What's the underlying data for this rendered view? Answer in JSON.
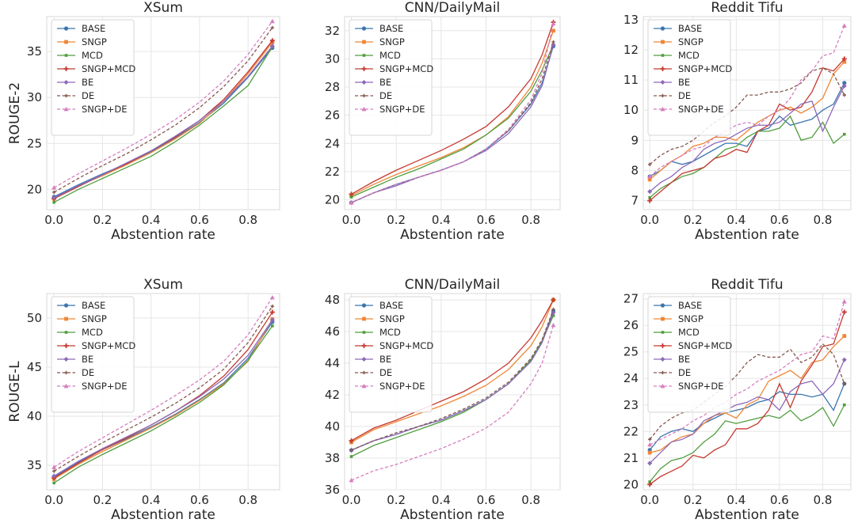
{
  "figure": {
    "colors": {
      "BASE": "#3b75af",
      "SNGP": "#ef8636",
      "MCD": "#519e3e",
      "SNGP+MCD": "#c53a32",
      "BE": "#8d69b8",
      "DE": "#84584e",
      "SNGP+DE": "#d57dbf"
    },
    "markers": {
      "BASE": "circle",
      "SNGP": "square",
      "MCD": "small-square",
      "SNGP+MCD": "plus",
      "BE": "diamond",
      "DE": "small-plus",
      "SNGP+DE": "triangle"
    },
    "dashed_series": [
      "DE",
      "SNGP+DE"
    ],
    "legend_order": [
      "BASE",
      "SNGP",
      "MCD",
      "SNGP+MCD",
      "BE",
      "DE",
      "SNGP+DE"
    ]
  },
  "chart_data": [
    {
      "type": "line",
      "title": "XSum",
      "xlabel": "Abstention rate",
      "ylabel": "ROUGE-2",
      "xlim": [
        -0.03,
        0.93
      ],
      "ylim": [
        17.8,
        38.8
      ],
      "xticks": [
        0.0,
        0.2,
        0.4,
        0.6,
        0.8
      ],
      "yticks": [
        20,
        25,
        30,
        35
      ],
      "legend": "top-left",
      "grid": true,
      "x": [
        0.0,
        0.1,
        0.2,
        0.3,
        0.4,
        0.5,
        0.6,
        0.7,
        0.8,
        0.9
      ],
      "series": [
        {
          "name": "BASE",
          "values": [
            19.2,
            20.5,
            21.7,
            22.8,
            24.1,
            25.6,
            27.3,
            29.4,
            32.2,
            35.4
          ]
        },
        {
          "name": "SNGP",
          "values": [
            19.0,
            20.4,
            21.5,
            22.7,
            24.0,
            25.5,
            27.2,
            29.6,
            32.6,
            36.0
          ]
        },
        {
          "name": "MCD",
          "values": [
            18.6,
            20.0,
            21.2,
            22.4,
            23.6,
            25.2,
            27.0,
            29.1,
            31.3,
            35.5
          ]
        },
        {
          "name": "SNGP+MCD",
          "values": [
            19.0,
            20.3,
            21.6,
            22.8,
            24.2,
            25.7,
            27.5,
            29.8,
            32.8,
            36.2
          ]
        },
        {
          "name": "BE",
          "values": [
            19.1,
            20.4,
            21.6,
            22.9,
            24.2,
            25.8,
            27.5,
            29.6,
            32.3,
            35.6
          ]
        },
        {
          "name": "DE",
          "values": [
            19.7,
            21.2,
            22.6,
            23.9,
            25.4,
            27.0,
            28.9,
            31.2,
            34.0,
            37.6
          ]
        },
        {
          "name": "SNGP+DE",
          "values": [
            20.2,
            21.7,
            23.1,
            24.5,
            26.0,
            27.6,
            29.5,
            31.8,
            34.7,
            38.3
          ]
        }
      ]
    },
    {
      "type": "line",
      "title": "CNN/DailyMail",
      "xlabel": "Abstention rate",
      "ylabel": "",
      "xlim": [
        -0.03,
        0.93
      ],
      "ylim": [
        19.3,
        33.0
      ],
      "xticks": [
        0.0,
        0.2,
        0.4,
        0.6,
        0.8
      ],
      "yticks": [
        20,
        22,
        24,
        26,
        28,
        30,
        32
      ],
      "legend": "top-left",
      "grid": true,
      "x": [
        0.0,
        0.1,
        0.2,
        0.3,
        0.4,
        0.5,
        0.6,
        0.7,
        0.8,
        0.85,
        0.9
      ],
      "series": [
        {
          "name": "BASE",
          "values": [
            19.8,
            20.5,
            21.1,
            21.6,
            22.1,
            22.7,
            23.6,
            24.9,
            26.8,
            28.3,
            30.9
          ]
        },
        {
          "name": "SNGP",
          "values": [
            20.3,
            21.1,
            21.8,
            22.4,
            23.0,
            23.7,
            24.6,
            25.9,
            28.0,
            29.7,
            32.0
          ]
        },
        {
          "name": "MCD",
          "values": [
            20.2,
            20.9,
            21.6,
            22.2,
            22.9,
            23.6,
            24.6,
            25.8,
            27.7,
            29.2,
            31.0
          ]
        },
        {
          "name": "SNGP+MCD",
          "values": [
            20.4,
            21.3,
            22.1,
            22.8,
            23.5,
            24.3,
            25.2,
            26.6,
            28.6,
            30.3,
            32.6
          ]
        },
        {
          "name": "BE",
          "values": [
            19.8,
            20.5,
            21.0,
            21.6,
            22.1,
            22.7,
            23.5,
            24.7,
            26.6,
            28.1,
            31.0
          ]
        },
        {
          "name": "DE",
          "values": [
            19.8,
            20.5,
            21.1,
            21.6,
            22.1,
            22.7,
            23.6,
            24.9,
            26.9,
            28.6,
            31.2
          ]
        },
        {
          "name": "SNGP+DE",
          "values": [
            19.8,
            20.5,
            21.1,
            21.6,
            22.1,
            22.7,
            23.6,
            25.0,
            27.1,
            29.0,
            32.5
          ]
        }
      ]
    },
    {
      "type": "line",
      "title": "Reddit Tifu",
      "xlabel": "Abstention rate",
      "ylabel": "",
      "xlim": [
        -0.03,
        0.93
      ],
      "ylim": [
        6.7,
        13.1
      ],
      "xticks": [
        0.0,
        0.2,
        0.4,
        0.6,
        0.8
      ],
      "yticks": [
        7,
        8,
        9,
        10,
        11,
        12,
        13
      ],
      "legend": "top-left",
      "grid": true,
      "x": [
        0.0,
        0.05,
        0.1,
        0.15,
        0.2,
        0.25,
        0.3,
        0.35,
        0.4,
        0.45,
        0.5,
        0.55,
        0.6,
        0.65,
        0.7,
        0.75,
        0.8,
        0.85,
        0.9
      ],
      "series": [
        {
          "name": "BASE",
          "values": [
            7.8,
            8.0,
            8.3,
            8.2,
            8.3,
            8.5,
            8.7,
            8.9,
            8.9,
            8.8,
            9.3,
            9.4,
            9.8,
            9.5,
            9.6,
            9.7,
            10.0,
            10.2,
            10.9
          ]
        },
        {
          "name": "SNGP",
          "values": [
            7.7,
            8.0,
            8.3,
            8.5,
            8.8,
            8.9,
            9.1,
            9.1,
            9.0,
            9.3,
            9.6,
            9.8,
            10.0,
            10.1,
            9.9,
            10.1,
            10.4,
            11.2,
            11.6
          ]
        },
        {
          "name": "MCD",
          "values": [
            7.1,
            7.4,
            7.6,
            7.8,
            7.9,
            8.1,
            8.4,
            8.7,
            8.8,
            9.1,
            9.3,
            9.3,
            9.4,
            9.8,
            9.0,
            9.1,
            9.6,
            8.9,
            9.2
          ]
        },
        {
          "name": "SNGP+MCD",
          "values": [
            7.0,
            7.3,
            7.6,
            7.9,
            8.0,
            8.1,
            8.4,
            8.5,
            8.7,
            8.6,
            9.3,
            9.5,
            10.2,
            10.0,
            10.1,
            10.6,
            11.4,
            11.3,
            11.7
          ]
        },
        {
          "name": "BE",
          "values": [
            7.3,
            7.6,
            7.8,
            8.1,
            8.3,
            8.7,
            8.9,
            9.0,
            9.2,
            9.4,
            9.5,
            9.5,
            9.6,
            9.9,
            10.2,
            10.3,
            9.3,
            10.1,
            10.8
          ]
        },
        {
          "name": "DE",
          "values": [
            8.2,
            8.5,
            8.7,
            8.8,
            9.0,
            9.3,
            9.6,
            9.8,
            10.1,
            10.5,
            10.5,
            10.6,
            10.6,
            10.7,
            10.9,
            11.3,
            11.4,
            11.2,
            10.5
          ]
        },
        {
          "name": "SNGP+DE",
          "values": [
            7.8,
            8.1,
            8.3,
            8.5,
            8.7,
            8.8,
            9.1,
            9.3,
            9.5,
            9.6,
            9.5,
            9.8,
            10.0,
            10.4,
            11.0,
            11.3,
            11.8,
            11.9,
            12.8
          ]
        }
      ]
    },
    {
      "type": "line",
      "title": "XSum",
      "xlabel": "Abstention rate",
      "ylabel": "ROUGE-L",
      "xlim": [
        -0.03,
        0.93
      ],
      "ylim": [
        32.5,
        52.5
      ],
      "xticks": [
        0.0,
        0.2,
        0.4,
        0.6,
        0.8
      ],
      "yticks": [
        35,
        40,
        45,
        50
      ],
      "legend": "top-left",
      "grid": true,
      "x": [
        0.0,
        0.1,
        0.2,
        0.3,
        0.4,
        0.5,
        0.6,
        0.7,
        0.8,
        0.9
      ],
      "series": [
        {
          "name": "BASE",
          "values": [
            33.8,
            35.3,
            36.6,
            37.7,
            38.9,
            40.2,
            41.7,
            43.4,
            45.9,
            49.6
          ]
        },
        {
          "name": "SNGP",
          "values": [
            33.6,
            35.1,
            36.4,
            37.6,
            38.8,
            40.1,
            41.6,
            43.3,
            45.6,
            49.9
          ]
        },
        {
          "name": "MCD",
          "values": [
            33.2,
            34.8,
            36.1,
            37.3,
            38.5,
            39.9,
            41.4,
            43.2,
            45.7,
            49.2
          ]
        },
        {
          "name": "SNGP+MCD",
          "values": [
            33.7,
            35.2,
            36.6,
            37.8,
            39.1,
            40.5,
            42.1,
            44.1,
            46.8,
            50.6
          ]
        },
        {
          "name": "BE",
          "values": [
            33.9,
            35.4,
            36.7,
            37.9,
            39.1,
            40.5,
            42.0,
            43.8,
            46.2,
            49.8
          ]
        },
        {
          "name": "DE",
          "values": [
            34.4,
            35.9,
            37.3,
            38.6,
            39.9,
            41.3,
            42.9,
            44.8,
            47.5,
            51.2
          ]
        },
        {
          "name": "SNGP+DE",
          "values": [
            34.8,
            36.4,
            37.8,
            39.2,
            40.6,
            42.1,
            43.7,
            45.6,
            48.3,
            52.1
          ]
        }
      ]
    },
    {
      "type": "line",
      "title": "CNN/DailyMail",
      "xlabel": "Abstention rate",
      "ylabel": "",
      "xlim": [
        -0.03,
        0.93
      ],
      "ylim": [
        36.0,
        48.4
      ],
      "xticks": [
        0.0,
        0.2,
        0.4,
        0.6,
        0.8
      ],
      "yticks": [
        36,
        38,
        40,
        42,
        44,
        46,
        48
      ],
      "legend": "top-left",
      "grid": true,
      "x": [
        0.0,
        0.1,
        0.2,
        0.3,
        0.4,
        0.5,
        0.6,
        0.7,
        0.8,
        0.85,
        0.9
      ],
      "series": [
        {
          "name": "BASE",
          "values": [
            38.5,
            39.1,
            39.5,
            40.0,
            40.4,
            41.0,
            41.7,
            42.7,
            44.2,
            45.4,
            47.3
          ]
        },
        {
          "name": "SNGP",
          "values": [
            39.0,
            39.8,
            40.3,
            40.8,
            41.3,
            41.9,
            42.6,
            43.6,
            45.1,
            46.3,
            48.0
          ]
        },
        {
          "name": "MCD",
          "values": [
            38.1,
            38.8,
            39.3,
            39.8,
            40.3,
            40.9,
            41.7,
            42.7,
            44.2,
            45.4,
            47.0
          ]
        },
        {
          "name": "SNGP+MCD",
          "values": [
            39.1,
            39.9,
            40.4,
            41.0,
            41.6,
            42.2,
            43.0,
            44.0,
            45.6,
            46.7,
            48.0
          ]
        },
        {
          "name": "BE",
          "values": [
            38.5,
            39.1,
            39.5,
            40.0,
            40.4,
            41.0,
            41.7,
            42.7,
            44.1,
            45.3,
            47.2
          ]
        },
        {
          "name": "DE",
          "values": [
            38.5,
            39.1,
            39.6,
            40.0,
            40.5,
            41.1,
            41.8,
            42.8,
            44.3,
            45.5,
            47.4
          ]
        },
        {
          "name": "SNGP+DE",
          "values": [
            36.6,
            37.2,
            37.6,
            38.1,
            38.6,
            39.2,
            39.9,
            40.9,
            42.7,
            44.0,
            46.4
          ]
        }
      ]
    },
    {
      "type": "line",
      "title": "Reddit Tifu",
      "xlabel": "Abstention rate",
      "ylabel": "",
      "xlim": [
        -0.03,
        0.93
      ],
      "ylim": [
        19.8,
        27.2
      ],
      "xticks": [
        0.0,
        0.2,
        0.4,
        0.6,
        0.8
      ],
      "yticks": [
        20,
        21,
        22,
        23,
        24,
        25,
        26,
        27
      ],
      "legend": "top-left",
      "grid": true,
      "x": [
        0.0,
        0.05,
        0.1,
        0.15,
        0.2,
        0.25,
        0.3,
        0.35,
        0.4,
        0.45,
        0.5,
        0.55,
        0.6,
        0.65,
        0.7,
        0.75,
        0.8,
        0.85,
        0.9
      ],
      "series": [
        {
          "name": "BASE",
          "values": [
            21.3,
            21.8,
            22.0,
            22.1,
            22.0,
            22.3,
            22.5,
            22.7,
            22.8,
            22.9,
            23.1,
            23.2,
            23.5,
            23.4,
            23.4,
            23.3,
            23.4,
            22.8,
            23.8
          ]
        },
        {
          "name": "SNGP",
          "values": [
            21.2,
            21.3,
            21.6,
            21.8,
            21.9,
            22.3,
            22.6,
            22.7,
            22.5,
            23.0,
            23.2,
            23.9,
            24.1,
            24.3,
            24.0,
            24.6,
            24.7,
            25.2,
            25.6
          ]
        },
        {
          "name": "MCD",
          "values": [
            20.1,
            20.6,
            20.9,
            21.0,
            21.2,
            21.6,
            21.9,
            22.4,
            22.3,
            22.4,
            22.5,
            22.6,
            22.5,
            22.8,
            22.4,
            22.6,
            22.9,
            22.2,
            23.0
          ]
        },
        {
          "name": "SNGP+MCD",
          "values": [
            20.0,
            20.3,
            20.5,
            20.7,
            21.1,
            21.0,
            21.3,
            21.5,
            22.1,
            22.1,
            22.3,
            22.8,
            23.8,
            22.9,
            23.9,
            24.5,
            25.2,
            25.3,
            26.5
          ]
        },
        {
          "name": "BE",
          "values": [
            20.8,
            21.2,
            21.6,
            21.7,
            21.9,
            22.4,
            22.6,
            22.8,
            23.0,
            23.1,
            23.3,
            23.2,
            22.8,
            23.5,
            23.8,
            23.9,
            23.4,
            23.8,
            24.7
          ]
        },
        {
          "name": "DE",
          "values": [
            21.7,
            22.2,
            22.5,
            22.7,
            22.8,
            23.1,
            23.4,
            23.7,
            24.1,
            24.6,
            24.9,
            24.8,
            24.8,
            25.1,
            24.6,
            24.8,
            25.3,
            24.9,
            23.8
          ]
        },
        {
          "name": "SNGP+DE",
          "values": [
            21.5,
            21.7,
            21.9,
            22.1,
            22.4,
            22.6,
            22.9,
            23.1,
            23.4,
            23.6,
            23.9,
            24.1,
            24.3,
            24.6,
            24.9,
            25.0,
            25.6,
            25.5,
            26.9
          ]
        }
      ]
    }
  ]
}
